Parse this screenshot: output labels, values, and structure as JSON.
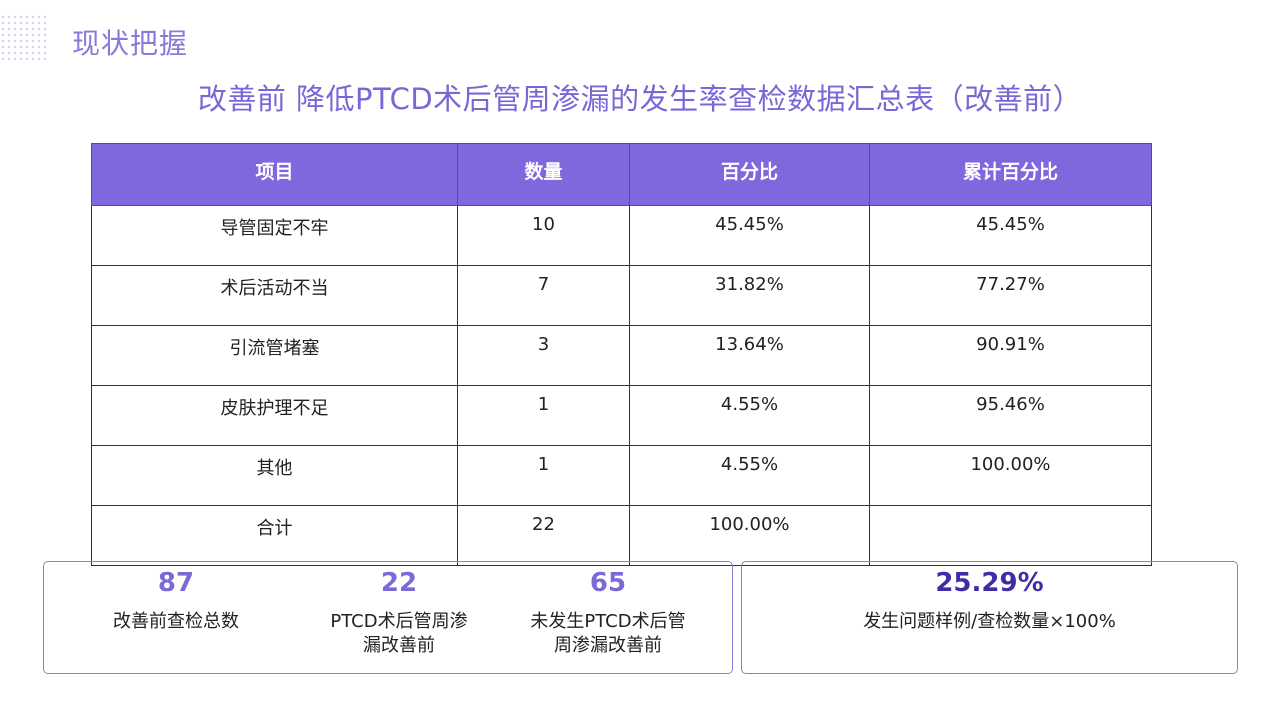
{
  "header": {
    "section_title": "现状把握"
  },
  "slide": {
    "title": "改善前 降低PTCD术后管周渗漏的发生率查检数据汇总表（改善前）"
  },
  "table": {
    "columns": [
      "项目",
      "数量",
      "百分比",
      "累计百分比"
    ],
    "rows": [
      [
        "导管固定不牢",
        "10",
        "45.45%",
        "45.45%"
      ],
      [
        "术后活动不当",
        "7",
        "31.82%",
        "77.27%"
      ],
      [
        "引流管堵塞",
        "3",
        "13.64%",
        "90.91%"
      ],
      [
        "皮肤护理不足",
        "1",
        "4.55%",
        "95.46%"
      ],
      [
        "其他",
        "1",
        "4.55%",
        "100.00%"
      ],
      [
        "合计",
        "22",
        "100.00%",
        ""
      ]
    ]
  },
  "stats": [
    {
      "value": "87",
      "label": "改善前查检总数"
    },
    {
      "value": "22",
      "label": "PTCD术后管周渗漏改善前"
    },
    {
      "value": "65",
      "label": "未发生PTCD术后管周渗漏改善前"
    }
  ],
  "rate": {
    "value": "25.29%",
    "label": "发生问题样例/查检数量×100%"
  }
}
